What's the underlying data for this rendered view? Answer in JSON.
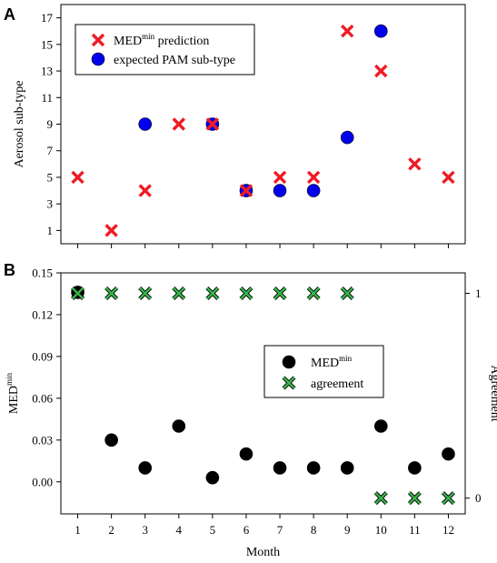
{
  "chart_data": [
    {
      "panel": "A",
      "type": "scatter",
      "ylabel": "Aerosol sub-type",
      "ylim": [
        0,
        18
      ],
      "yticks": [
        1,
        3,
        5,
        7,
        9,
        11,
        13,
        15,
        17
      ],
      "xticks": [
        1,
        2,
        3,
        4,
        5,
        6,
        7,
        8,
        9,
        10,
        11,
        12
      ],
      "xlim": [
        0.5,
        12.5
      ],
      "legend_position": "top-left",
      "series": [
        {
          "name": "MED",
          "name_sup": "min",
          "name_suffix": " prediction",
          "marker": "x",
          "color": "#ee1c24",
          "x": [
            1,
            2,
            3,
            4,
            5,
            6,
            7,
            8,
            9,
            10,
            11,
            12
          ],
          "y": [
            5,
            1,
            4,
            9,
            9,
            4,
            5,
            5,
            16,
            13,
            6,
            5
          ]
        },
        {
          "name": "expected PAM sub-type",
          "marker": "circle",
          "color": "#0000ee",
          "x": [
            3,
            5,
            6,
            7,
            8,
            9,
            10
          ],
          "y": [
            9,
            9,
            4,
            4,
            4,
            8,
            16
          ]
        }
      ]
    },
    {
      "panel": "B",
      "type": "scatter",
      "xlabel": "Month",
      "ylabel": "MED",
      "ylabel_sup": "min",
      "ylim": [
        -0.023,
        0.15
      ],
      "yticks": [
        0.0,
        0.03,
        0.06,
        0.09,
        0.12,
        0.15
      ],
      "ytick_labels": [
        "0.00",
        "0.03",
        "0.06",
        "0.09",
        "0.12",
        "0.15"
      ],
      "y2label": "Agreement",
      "y2lim": [
        -0.077,
        1.1
      ],
      "y2ticks": [
        0,
        1
      ],
      "xticks": [
        1,
        2,
        3,
        4,
        5,
        6,
        7,
        8,
        9,
        10,
        11,
        12
      ],
      "xlim": [
        0.5,
        12.5
      ],
      "legend_position": "center-right",
      "series": [
        {
          "name": "MED",
          "name_sup": "min",
          "name_suffix": "",
          "marker": "circle",
          "color": "#000000",
          "axis": "left",
          "x": [
            1,
            2,
            3,
            4,
            5,
            6,
            7,
            8,
            9,
            10,
            11,
            12
          ],
          "y": [
            0.136,
            0.03,
            0.01,
            0.04,
            0.003,
            0.02,
            0.01,
            0.01,
            0.01,
            0.04,
            0.01,
            0.02
          ]
        },
        {
          "name": "agreement",
          "marker": "x",
          "color": "#39b54a",
          "axis": "right",
          "x": [
            1,
            2,
            3,
            4,
            5,
            6,
            7,
            8,
            9,
            10,
            11,
            12
          ],
          "y": [
            1,
            1,
            1,
            1,
            1,
            1,
            1,
            1,
            1,
            0,
            0,
            0
          ]
        }
      ]
    }
  ]
}
